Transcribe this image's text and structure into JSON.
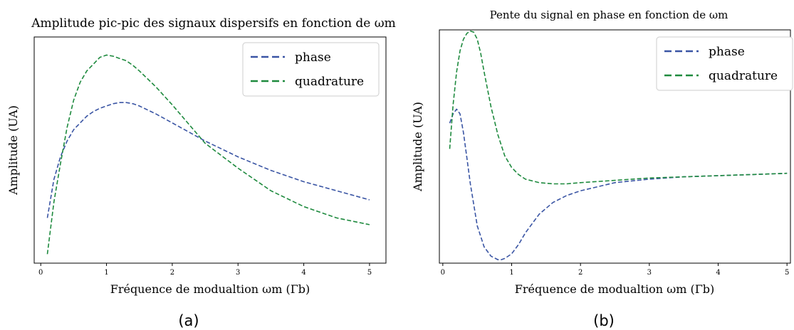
{
  "panels": [
    {
      "caption": "(a)",
      "chart_data": {
        "type": "line",
        "title": "Amplitude pic-pic des signaux dispersifs en fonction de ωm",
        "xlabel": "Fréquence de modualtion ωm (Γb)",
        "ylabel": "Amplitude (UA)",
        "xlim": [
          -0.1,
          5.25
        ],
        "ylim": [
          0,
          1.0
        ],
        "xticks": [
          "0",
          "1",
          "2",
          "3",
          "4",
          "5"
        ],
        "grid": false,
        "legend": "top-right",
        "series": [
          {
            "name": "phase",
            "color": "#3a55a4",
            "x": [
              0.1,
              0.2,
              0.3,
              0.4,
              0.5,
              0.6,
              0.7,
              0.8,
              0.9,
              1.0,
              1.1,
              1.2,
              1.3,
              1.4,
              1.5,
              1.75,
              2.0,
              2.5,
              3.0,
              3.5,
              4.0,
              4.5,
              5.0
            ],
            "y": [
              0.2,
              0.37,
              0.47,
              0.54,
              0.59,
              0.62,
              0.65,
              0.67,
              0.685,
              0.695,
              0.705,
              0.71,
              0.71,
              0.705,
              0.695,
              0.66,
              0.62,
              0.54,
              0.47,
              0.41,
              0.36,
              0.32,
              0.28
            ]
          },
          {
            "name": "quadrature",
            "color": "#1e8a3e",
            "x": [
              0.1,
              0.2,
              0.3,
              0.4,
              0.5,
              0.6,
              0.7,
              0.8,
              0.9,
              1.0,
              1.1,
              1.2,
              1.3,
              1.4,
              1.5,
              1.75,
              2.0,
              2.5,
              3.0,
              3.5,
              4.0,
              4.5,
              5.0
            ],
            "y": [
              0.04,
              0.27,
              0.44,
              0.6,
              0.72,
              0.8,
              0.85,
              0.88,
              0.91,
              0.92,
              0.915,
              0.905,
              0.895,
              0.875,
              0.85,
              0.78,
              0.7,
              0.53,
              0.42,
              0.32,
              0.25,
              0.2,
              0.17
            ]
          }
        ]
      }
    },
    {
      "caption": "(b)",
      "chart_data": {
        "type": "line",
        "title": "Pente du signal en phase en fonction de ωm",
        "xlabel": "Fréquence de modualtion ωm (Γb)",
        "ylabel": "Amplitude (UA)",
        "xlim": [
          -0.05,
          5.05
        ],
        "ylim": [
          0,
          1.0
        ],
        "xticks": [
          "0",
          "1",
          "2",
          "3",
          "4",
          "5"
        ],
        "grid": false,
        "legend": "top-right",
        "series": [
          {
            "name": "phase",
            "color": "#3a55a4",
            "x": [
              0.1,
              0.15,
              0.2,
              0.25,
              0.3,
              0.35,
              0.4,
              0.5,
              0.6,
              0.7,
              0.8,
              0.85,
              0.9,
              1.0,
              1.1,
              1.2,
              1.4,
              1.6,
              1.8,
              2.0,
              2.5,
              3.0,
              3.5,
              4.0,
              4.5,
              5.0
            ],
            "y": [
              0.6,
              0.64,
              0.66,
              0.64,
              0.56,
              0.45,
              0.34,
              0.16,
              0.07,
              0.03,
              0.015,
              0.015,
              0.02,
              0.04,
              0.08,
              0.13,
              0.21,
              0.26,
              0.29,
              0.31,
              0.345,
              0.36,
              0.37,
              0.375,
              0.38,
              0.385
            ]
          },
          {
            "name": "quadrature",
            "color": "#1e8a3e",
            "x": [
              0.1,
              0.15,
              0.2,
              0.25,
              0.3,
              0.35,
              0.4,
              0.45,
              0.5,
              0.55,
              0.6,
              0.7,
              0.8,
              0.9,
              1.0,
              1.1,
              1.2,
              1.4,
              1.6,
              1.8,
              2.0,
              2.5,
              3.0,
              3.5,
              4.0,
              4.5,
              5.0
            ],
            "y": [
              0.49,
              0.68,
              0.82,
              0.91,
              0.96,
              0.985,
              0.995,
              0.99,
              0.96,
              0.9,
              0.82,
              0.67,
              0.55,
              0.46,
              0.41,
              0.38,
              0.36,
              0.345,
              0.34,
              0.34,
              0.345,
              0.355,
              0.365,
              0.37,
              0.375,
              0.38,
              0.385
            ]
          }
        ]
      }
    }
  ]
}
